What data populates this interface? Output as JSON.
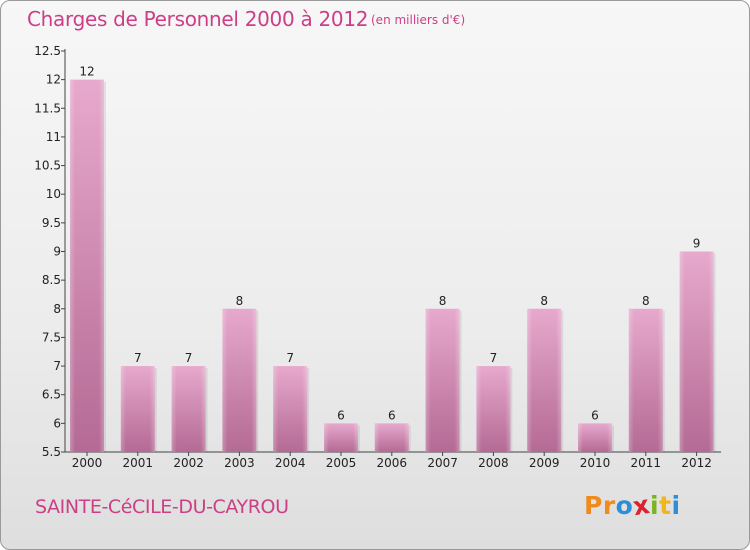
{
  "header": {
    "title": "Charges de Personnel 2000 à 2012",
    "subtitle": "(en milliers d'€)"
  },
  "footer": {
    "commune": "SAINTE-CéCILE-DU-CAYROU",
    "logo_letters": [
      "P",
      "r",
      "o",
      "x",
      "i",
      "t",
      "i"
    ],
    "logo_colors": [
      "#f08a1c",
      "#f08a1c",
      "#2a8fd6",
      "#d8242c",
      "#7ab51d",
      "#f2b51a",
      "#2a8fd6"
    ]
  },
  "chart_data": {
    "type": "bar",
    "categories": [
      "2000",
      "2001",
      "2002",
      "2003",
      "2004",
      "2005",
      "2006",
      "2007",
      "2008",
      "2009",
      "2010",
      "2011",
      "2012"
    ],
    "values": [
      12,
      7,
      7,
      8,
      7,
      6,
      6,
      8,
      7,
      8,
      6,
      8,
      9
    ],
    "data_labels": [
      "12",
      "7",
      "7",
      "8",
      "7",
      "6",
      "6",
      "8",
      "7",
      "8",
      "6",
      "8",
      "9"
    ],
    "title": "Charges de Personnel 2000 à 2012",
    "xlabel": "",
    "ylabel": "",
    "ylim": [
      5.5,
      12.5
    ],
    "yticks": [
      "5.5",
      "6",
      "6.5",
      "7",
      "7.5",
      "8",
      "8.5",
      "9",
      "9.5",
      "10",
      "10.5",
      "11",
      "11.5",
      "12",
      "12.5"
    ],
    "grid": false,
    "bar_color": "#d38fb6"
  }
}
